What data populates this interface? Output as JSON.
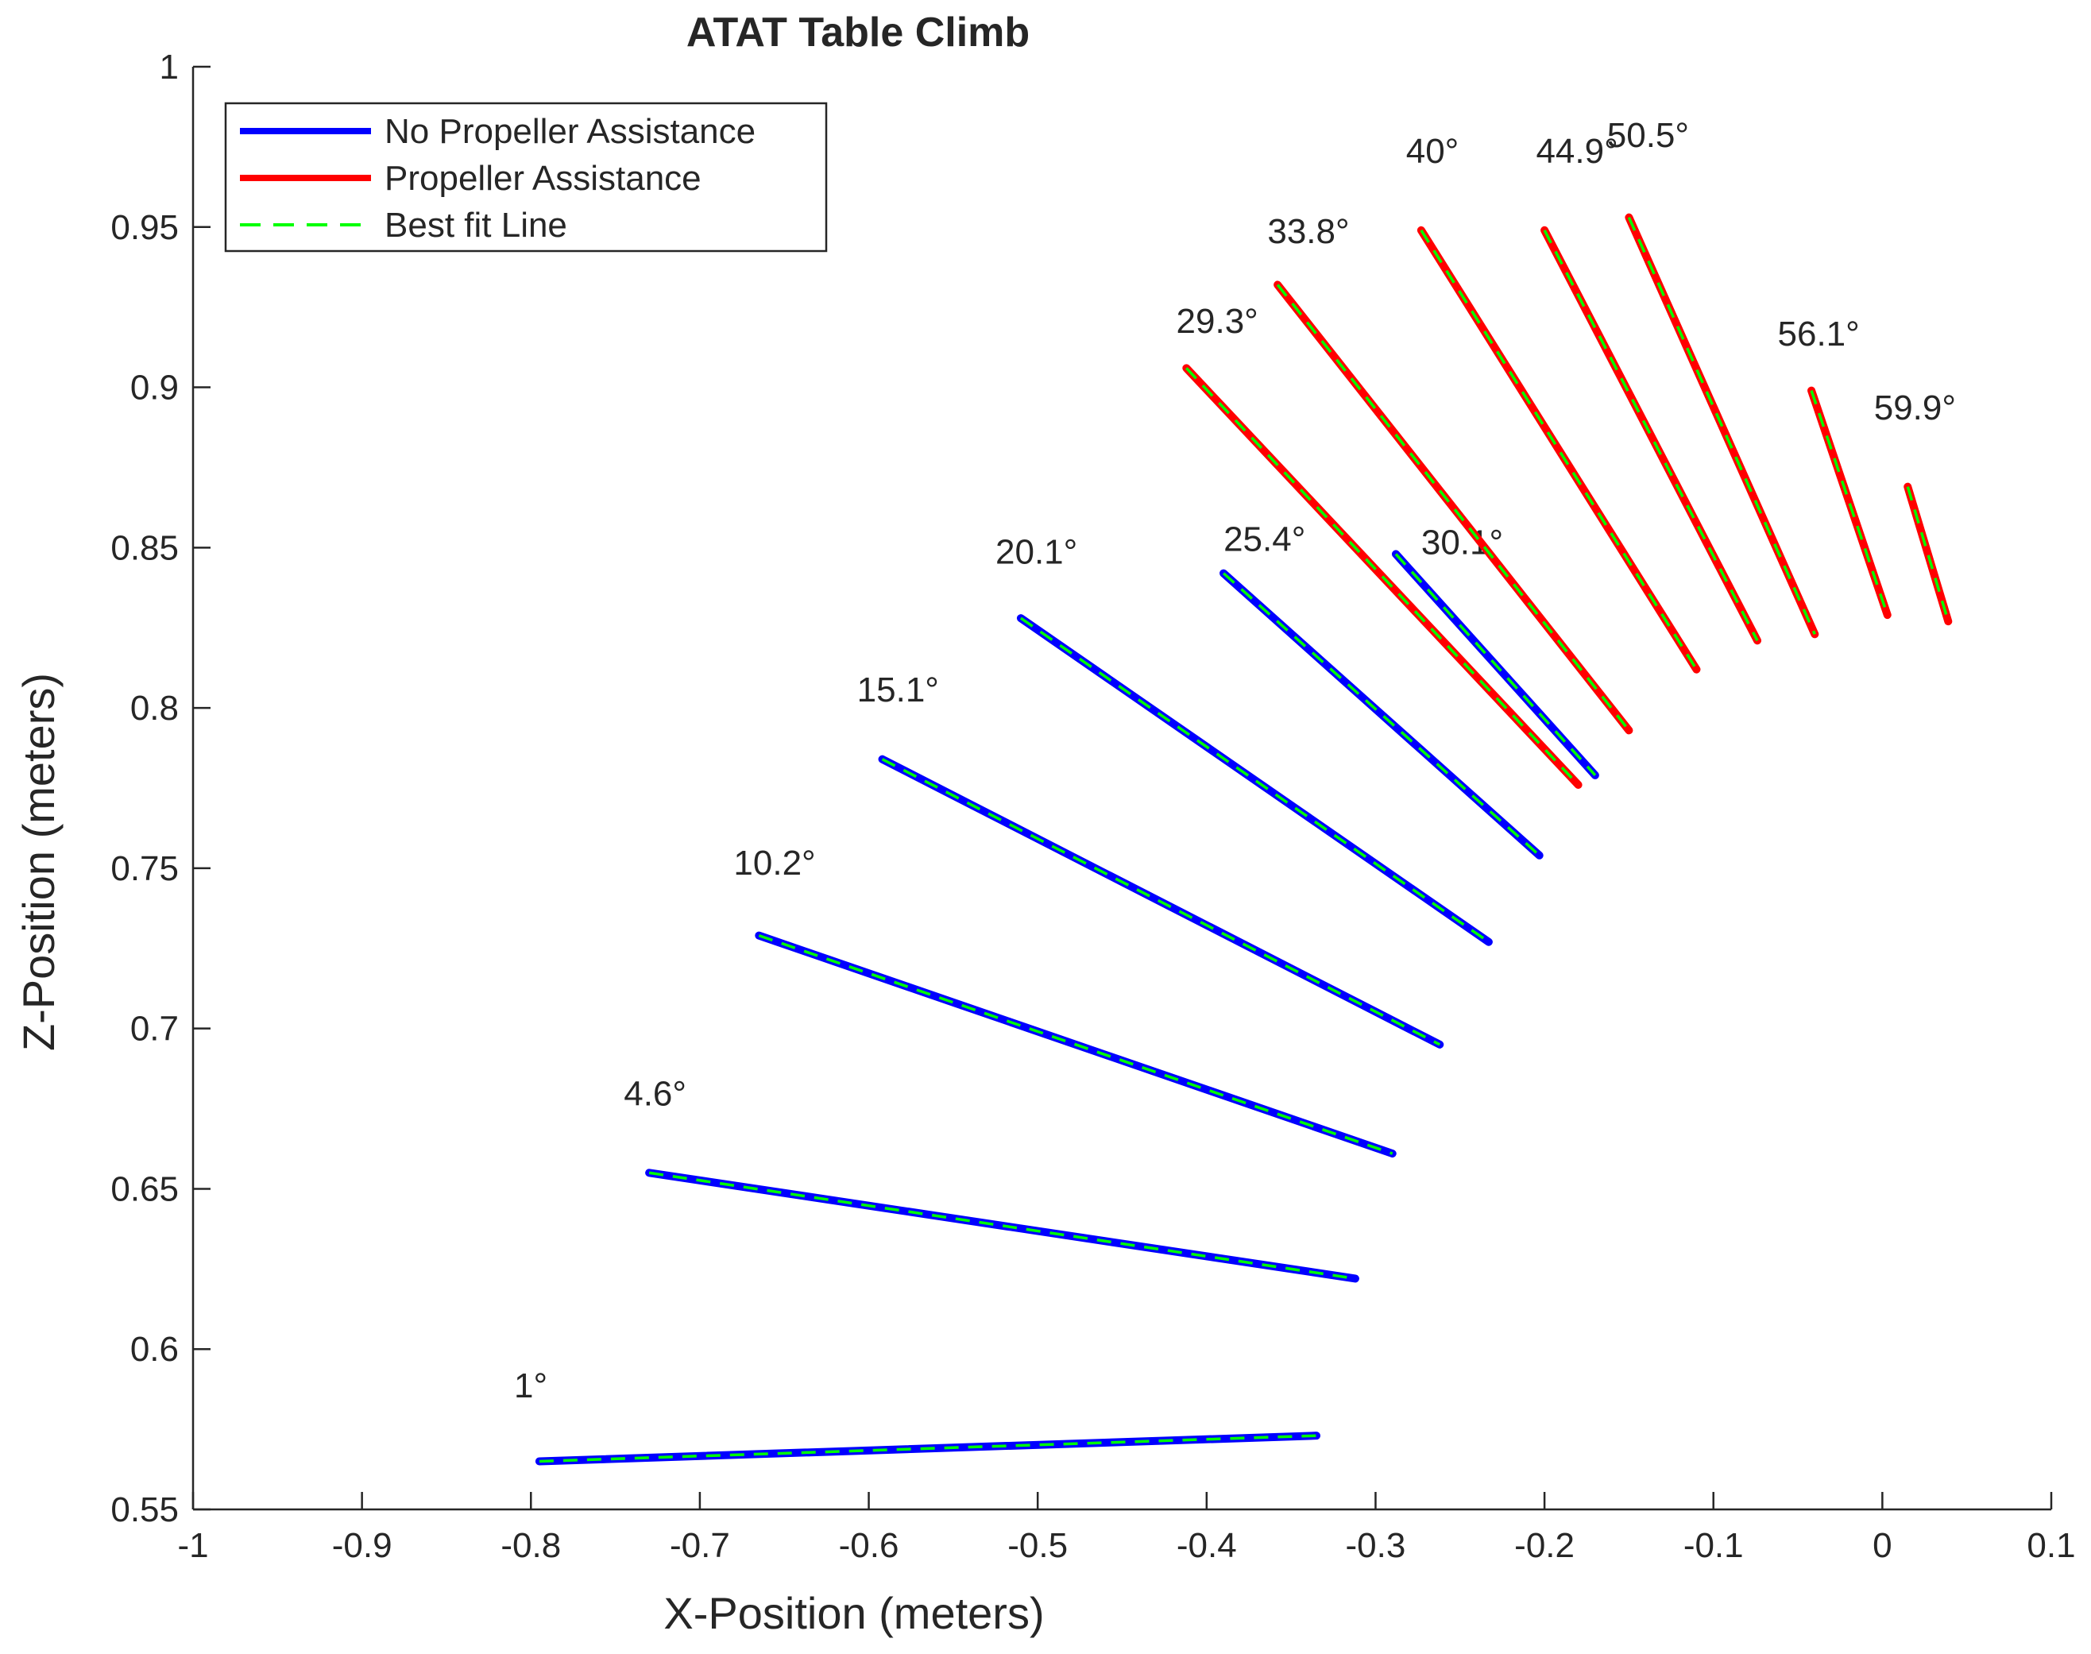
{
  "chart_data": {
    "type": "line",
    "title": "ATAT Table Climb",
    "xlabel": "X-Position (meters)",
    "ylabel": "Z-Position (meters)",
    "xlim": [
      -1,
      0.1
    ],
    "ylim": [
      0.55,
      1
    ],
    "xticks": [
      -1,
      -0.9,
      -0.8,
      -0.7,
      -0.6,
      -0.5,
      -0.4,
      -0.3,
      -0.2,
      -0.1,
      0,
      0.1
    ],
    "yticks": [
      0.55,
      0.6,
      0.65,
      0.7,
      0.75,
      0.8,
      0.85,
      0.9,
      0.95,
      1
    ],
    "grid": false,
    "legend_position": "top-left",
    "legend": [
      {
        "label": "No Propeller Assistance",
        "color": "#0000ff",
        "style": "solid"
      },
      {
        "label": "Propeller Assistance",
        "color": "#ff0000",
        "style": "solid"
      },
      {
        "label": "Best fit Line",
        "color": "#00ff00",
        "style": "dashed"
      }
    ],
    "series": [
      {
        "angle": "1°",
        "group": "No Propeller Assistance",
        "x": [
          -0.795,
          -0.335
        ],
        "y": [
          0.565,
          0.573
        ],
        "label_at": [
          -0.81,
          0.585
        ]
      },
      {
        "angle": "4.6°",
        "group": "No Propeller Assistance",
        "x": [
          -0.73,
          -0.312
        ],
        "y": [
          0.655,
          0.622
        ],
        "label_at": [
          -0.745,
          0.676
        ]
      },
      {
        "angle": "10.2°",
        "group": "No Propeller Assistance",
        "x": [
          -0.665,
          -0.29
        ],
        "y": [
          0.729,
          0.661
        ],
        "label_at": [
          -0.68,
          0.748
        ]
      },
      {
        "angle": "15.1°",
        "group": "No Propeller Assistance",
        "x": [
          -0.592,
          -0.262
        ],
        "y": [
          0.784,
          0.695
        ],
        "label_at": [
          -0.607,
          0.802
        ]
      },
      {
        "angle": "20.1°",
        "group": "No Propeller Assistance",
        "x": [
          -0.51,
          -0.233
        ],
        "y": [
          0.828,
          0.727
        ],
        "label_at": [
          -0.525,
          0.845
        ]
      },
      {
        "angle": "25.4°",
        "group": "No Propeller Assistance",
        "x": [
          -0.39,
          -0.203
        ],
        "y": [
          0.842,
          0.754
        ],
        "label_at": [
          -0.39,
          0.849
        ]
      },
      {
        "angle": "30.1°",
        "group": "No Propeller Assistance",
        "x": [
          -0.288,
          -0.17
        ],
        "y": [
          0.848,
          0.779
        ],
        "label_at": [
          -0.273,
          0.848
        ]
      },
      {
        "angle": "29.3°",
        "group": "Propeller Assistance",
        "x": [
          -0.412,
          -0.18
        ],
        "y": [
          0.906,
          0.776
        ],
        "label_at": [
          -0.418,
          0.917
        ]
      },
      {
        "angle": "33.8°",
        "group": "Propeller Assistance",
        "x": [
          -0.358,
          -0.15
        ],
        "y": [
          0.932,
          0.793
        ],
        "label_at": [
          -0.364,
          0.945
        ]
      },
      {
        "angle": "40°",
        "group": "Propeller Assistance",
        "x": [
          -0.273,
          -0.11
        ],
        "y": [
          0.949,
          0.812
        ],
        "label_at": [
          -0.282,
          0.97
        ]
      },
      {
        "angle": "44.9°",
        "group": "Propeller Assistance",
        "x": [
          -0.2,
          -0.074
        ],
        "y": [
          0.949,
          0.821
        ],
        "label_at": [
          -0.205,
          0.97
        ]
      },
      {
        "angle": "50.5°",
        "group": "Propeller Assistance",
        "x": [
          -0.15,
          -0.04
        ],
        "y": [
          0.953,
          0.823
        ],
        "label_at": [
          -0.163,
          0.975
        ]
      },
      {
        "angle": "56.1°",
        "group": "Propeller Assistance",
        "x": [
          -0.042,
          0.003
        ],
        "y": [
          0.899,
          0.829
        ],
        "label_at": [
          -0.062,
          0.913
        ]
      },
      {
        "angle": "59.9°",
        "group": "Propeller Assistance",
        "x": [
          0.015,
          0.039
        ],
        "y": [
          0.869,
          0.827
        ],
        "label_at": [
          -0.005,
          0.89
        ]
      }
    ]
  }
}
